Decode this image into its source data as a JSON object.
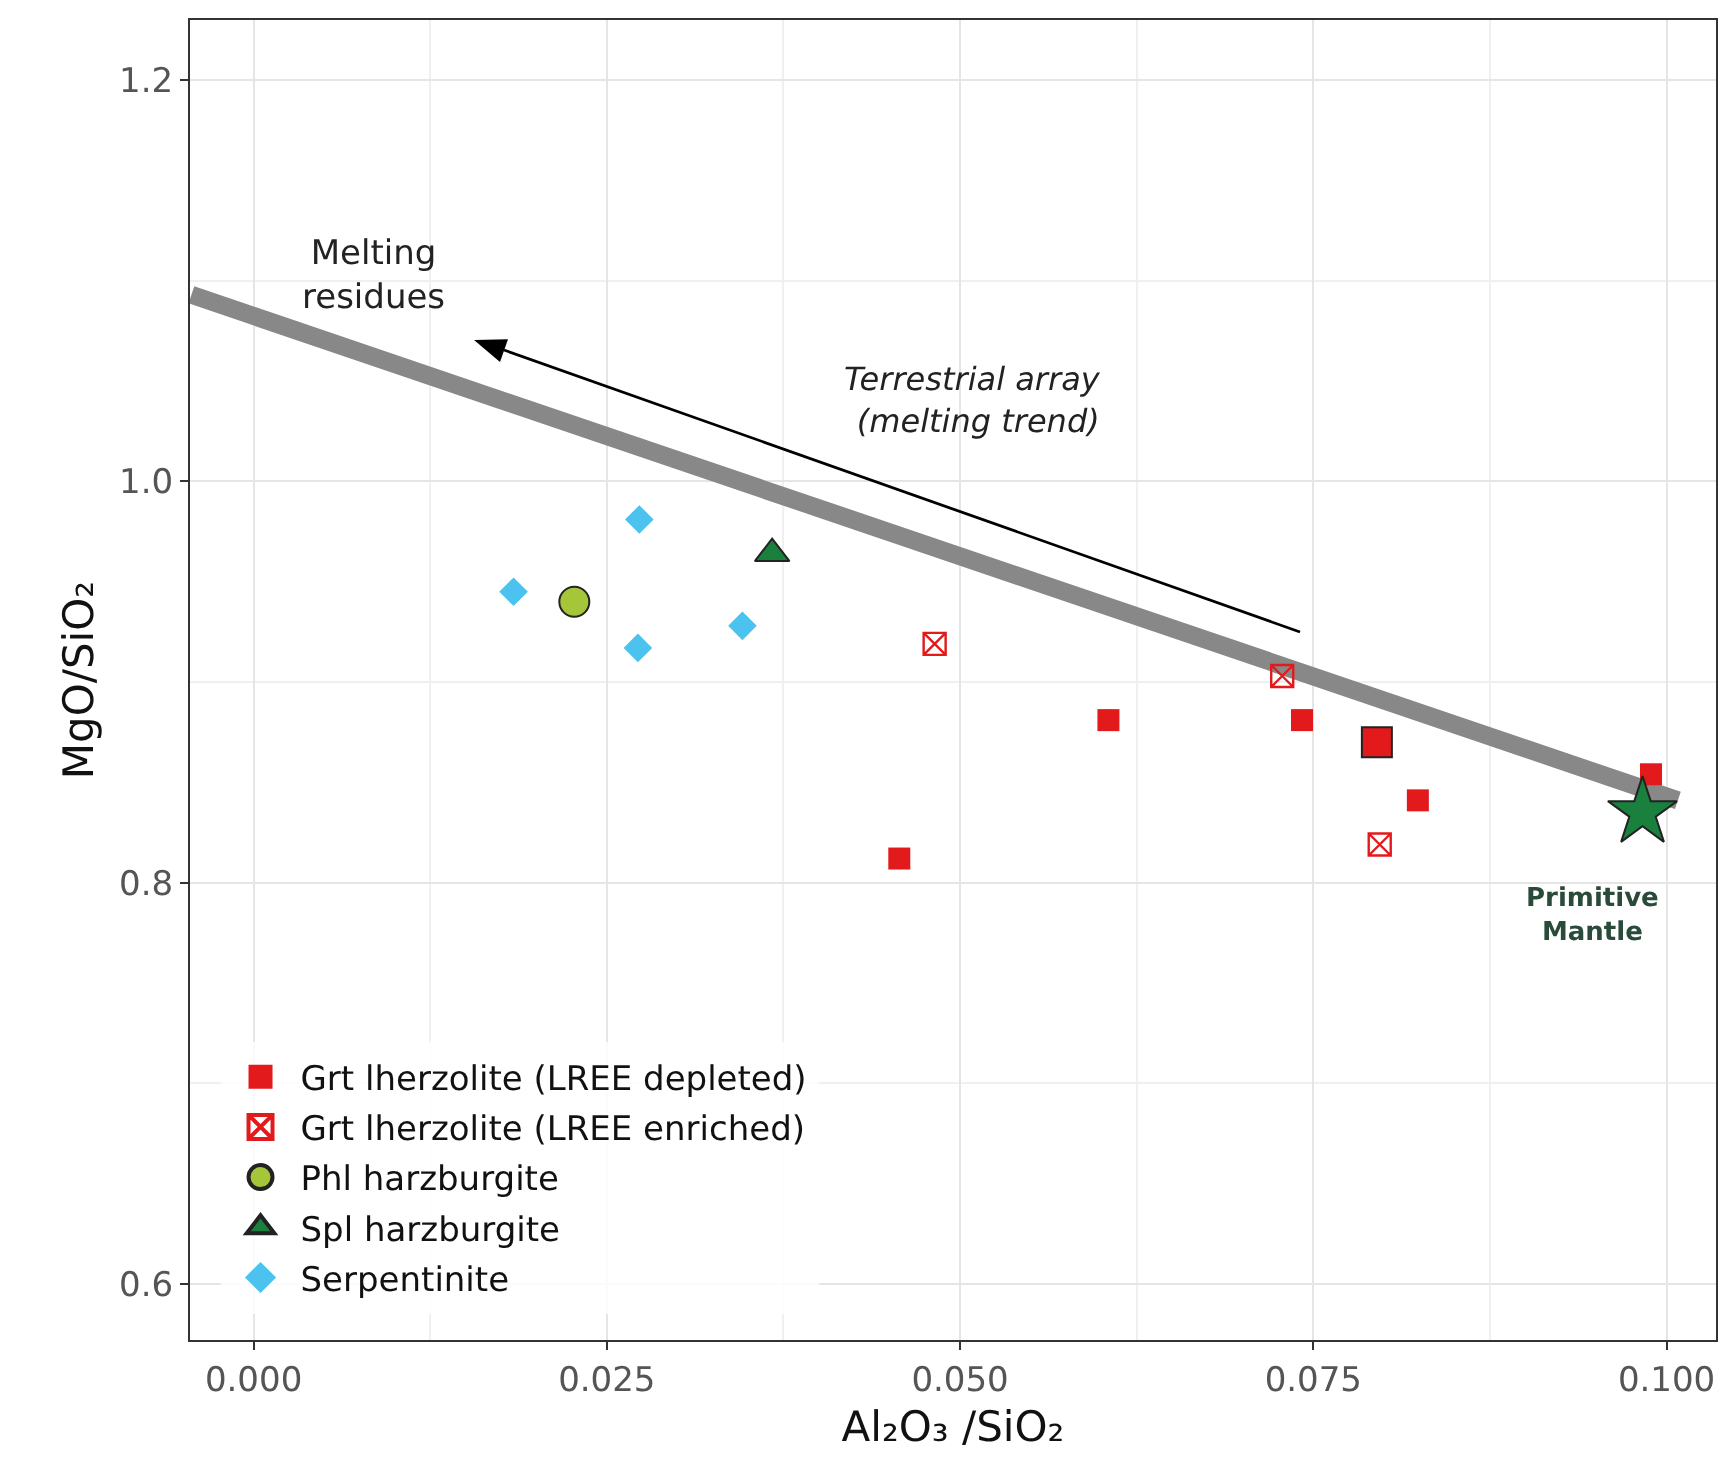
{
  "chart_data": {
    "type": "scatter",
    "xlabel": "Al₂O₃ /SiO₂",
    "ylabel": "MgO/SiO₂",
    "xlim": [
      -0.0045,
      0.1035
    ],
    "ylim": [
      0.572,
      1.23
    ],
    "xticks": [
      {
        "value": 0,
        "label": "0.000"
      },
      0.025,
      {
        "value": 0.05,
        "label": "0.050"
      },
      0.075,
      {
        "value": 0.1,
        "label": "0.100"
      }
    ],
    "yticks": [
      0.6,
      0.8,
      {
        "value": 1,
        "label": "1.0"
      },
      1.2
    ],
    "grid": true,
    "legend": "bottom left",
    "series": [
      {
        "type": "line",
        "x": [
          -0.0044,
          0.1008
        ],
        "values": [
          1.093,
          0.841
        ],
        "color": "#888888",
        "marker": "none"
      },
      {
        "name": "Grt lherzolite (LREE depleted)",
        "color": "#e31a1c",
        "marker": "square",
        "x": [
          0.0457,
          0.0605,
          0.0742,
          0.0824,
          0.0989
        ],
        "values": [
          0.812,
          0.881,
          0.881,
          0.841,
          0.854
        ]
      },
      {
        "name": "Grt lherzolite (LREE enriched)",
        "color": "#e31a1c",
        "marker": "cross",
        "x": [
          0.0482,
          0.0728,
          0.0797
        ],
        "values": [
          0.919,
          0.903,
          0.819
        ]
      },
      {
        "name": "Phl harzburgite",
        "color": "#a6c639",
        "marker": "circle",
        "x": [
          0.0227
        ],
        "values": [
          0.94
        ]
      },
      {
        "name": "Spl harzburgite",
        "color": "#19803d",
        "marker": "triangle",
        "x": [
          0.0367
        ],
        "values": [
          0.964
        ]
      },
      {
        "name": "Serpentinite",
        "color": "#4cc3ef",
        "marker": "diamond",
        "x": [
          0.0184,
          0.0273,
          0.0272,
          0.0346
        ],
        "values": [
          0.945,
          0.981,
          0.917,
          0.928
        ]
      },
      {
        "color": "#e31a1c",
        "marker": "square",
        "x": [
          0.0795
        ],
        "values": [
          0.87
        ]
      },
      {
        "color": "#19803d",
        "marker": "star",
        "x": [
          0.0983
        ],
        "values": [
          0.835
        ]
      }
    ],
    "annotations": [
      "Melting\nresidues",
      "Terrestrial array\n(melting trend)",
      "Primitive\nMantle"
    ]
  }
}
